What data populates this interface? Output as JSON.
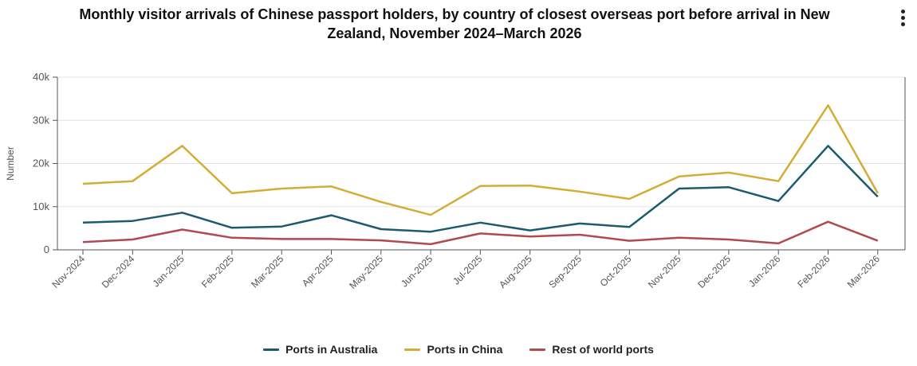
{
  "title_line1": "Monthly visitor arrivals of Chinese passport holders, by country of closest overseas port before arrival in New",
  "title_line2": "Zealand, November 2024–March 2026",
  "menu_icon": "kebab-menu-icon",
  "chart_data": {
    "type": "line",
    "ylabel": "Number",
    "xlabel": "",
    "ylim": [
      0,
      40000
    ],
    "yticks": [
      0,
      10000,
      20000,
      30000,
      40000
    ],
    "ytick_labels": [
      "0",
      "10k",
      "20k",
      "30k",
      "40k"
    ],
    "grid": "horizontal",
    "legend_position": "bottom",
    "categories": [
      "Nov-2024",
      "Dec-2024",
      "Jan-2025",
      "Feb-2025",
      "Mar-2025",
      "Apr-2025",
      "May-2025",
      "Jun-2025",
      "Jul-2025",
      "Aug-2025",
      "Sep-2025",
      "Oct-2025",
      "Nov-2025",
      "Dec-2025",
      "Jan-2026",
      "Feb-2026",
      "Mar-2026"
    ],
    "series": [
      {
        "name": "Ports in Australia",
        "color": "#1b5a6f",
        "values": [
          6300,
          6700,
          8600,
          5100,
          5400,
          8000,
          4800,
          4200,
          6300,
          4500,
          6100,
          5300,
          14200,
          14500,
          11300,
          24100,
          12300
        ]
      },
      {
        "name": "Ports in China",
        "color": "#d4ad35",
        "values": [
          15300,
          15900,
          24100,
          13100,
          14200,
          14700,
          11100,
          8100,
          14800,
          14900,
          13500,
          11800,
          17000,
          17900,
          15900,
          33500,
          13100
        ]
      },
      {
        "name": "Rest of world ports",
        "color": "#b04a4f",
        "values": [
          1800,
          2400,
          4700,
          2800,
          2500,
          2500,
          2200,
          1300,
          3800,
          3100,
          3500,
          2100,
          2800,
          2400,
          1500,
          6500,
          2100
        ]
      }
    ]
  }
}
